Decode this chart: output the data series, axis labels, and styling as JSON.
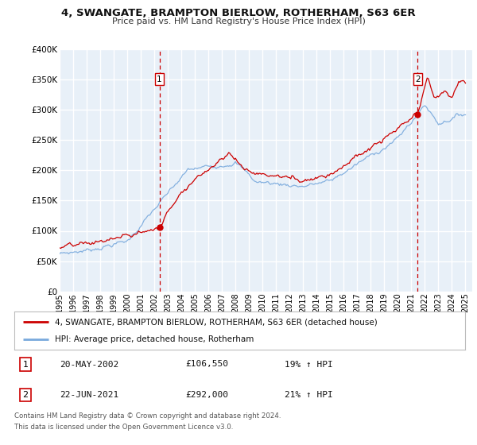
{
  "title": "4, SWANGATE, BRAMPTON BIERLOW, ROTHERHAM, S63 6ER",
  "subtitle": "Price paid vs. HM Land Registry's House Price Index (HPI)",
  "ylim": [
    0,
    400000
  ],
  "yticks": [
    0,
    50000,
    100000,
    150000,
    200000,
    250000,
    300000,
    350000,
    400000
  ],
  "xlim_start": 1995.0,
  "xlim_end": 2025.5,
  "xticks": [
    1995,
    1996,
    1997,
    1998,
    1999,
    2000,
    2001,
    2002,
    2003,
    2004,
    2005,
    2006,
    2007,
    2008,
    2009,
    2010,
    2011,
    2012,
    2013,
    2014,
    2015,
    2016,
    2017,
    2018,
    2019,
    2020,
    2021,
    2022,
    2023,
    2024,
    2025
  ],
  "red_color": "#cc0000",
  "blue_color": "#7aaadd",
  "dashed_line_color": "#cc0000",
  "background_color": "#e8f0f8",
  "grid_color": "#ffffff",
  "legend_label_red": "4, SWANGATE, BRAMPTON BIERLOW, ROTHERHAM, S63 6ER (detached house)",
  "legend_label_blue": "HPI: Average price, detached house, Rotherham",
  "sale1_date": 2002.38,
  "sale1_price": 106550,
  "sale1_label": "1",
  "sale2_date": 2021.47,
  "sale2_price": 292000,
  "sale2_label": "2",
  "annotation1_date": "20-MAY-2002",
  "annotation1_price": "£106,550",
  "annotation1_pct": "19% ↑ HPI",
  "annotation2_date": "22-JUN-2021",
  "annotation2_price": "£292,000",
  "annotation2_pct": "21% ↑ HPI",
  "footer_line1": "Contains HM Land Registry data © Crown copyright and database right 2024.",
  "footer_line2": "This data is licensed under the Open Government Licence v3.0."
}
